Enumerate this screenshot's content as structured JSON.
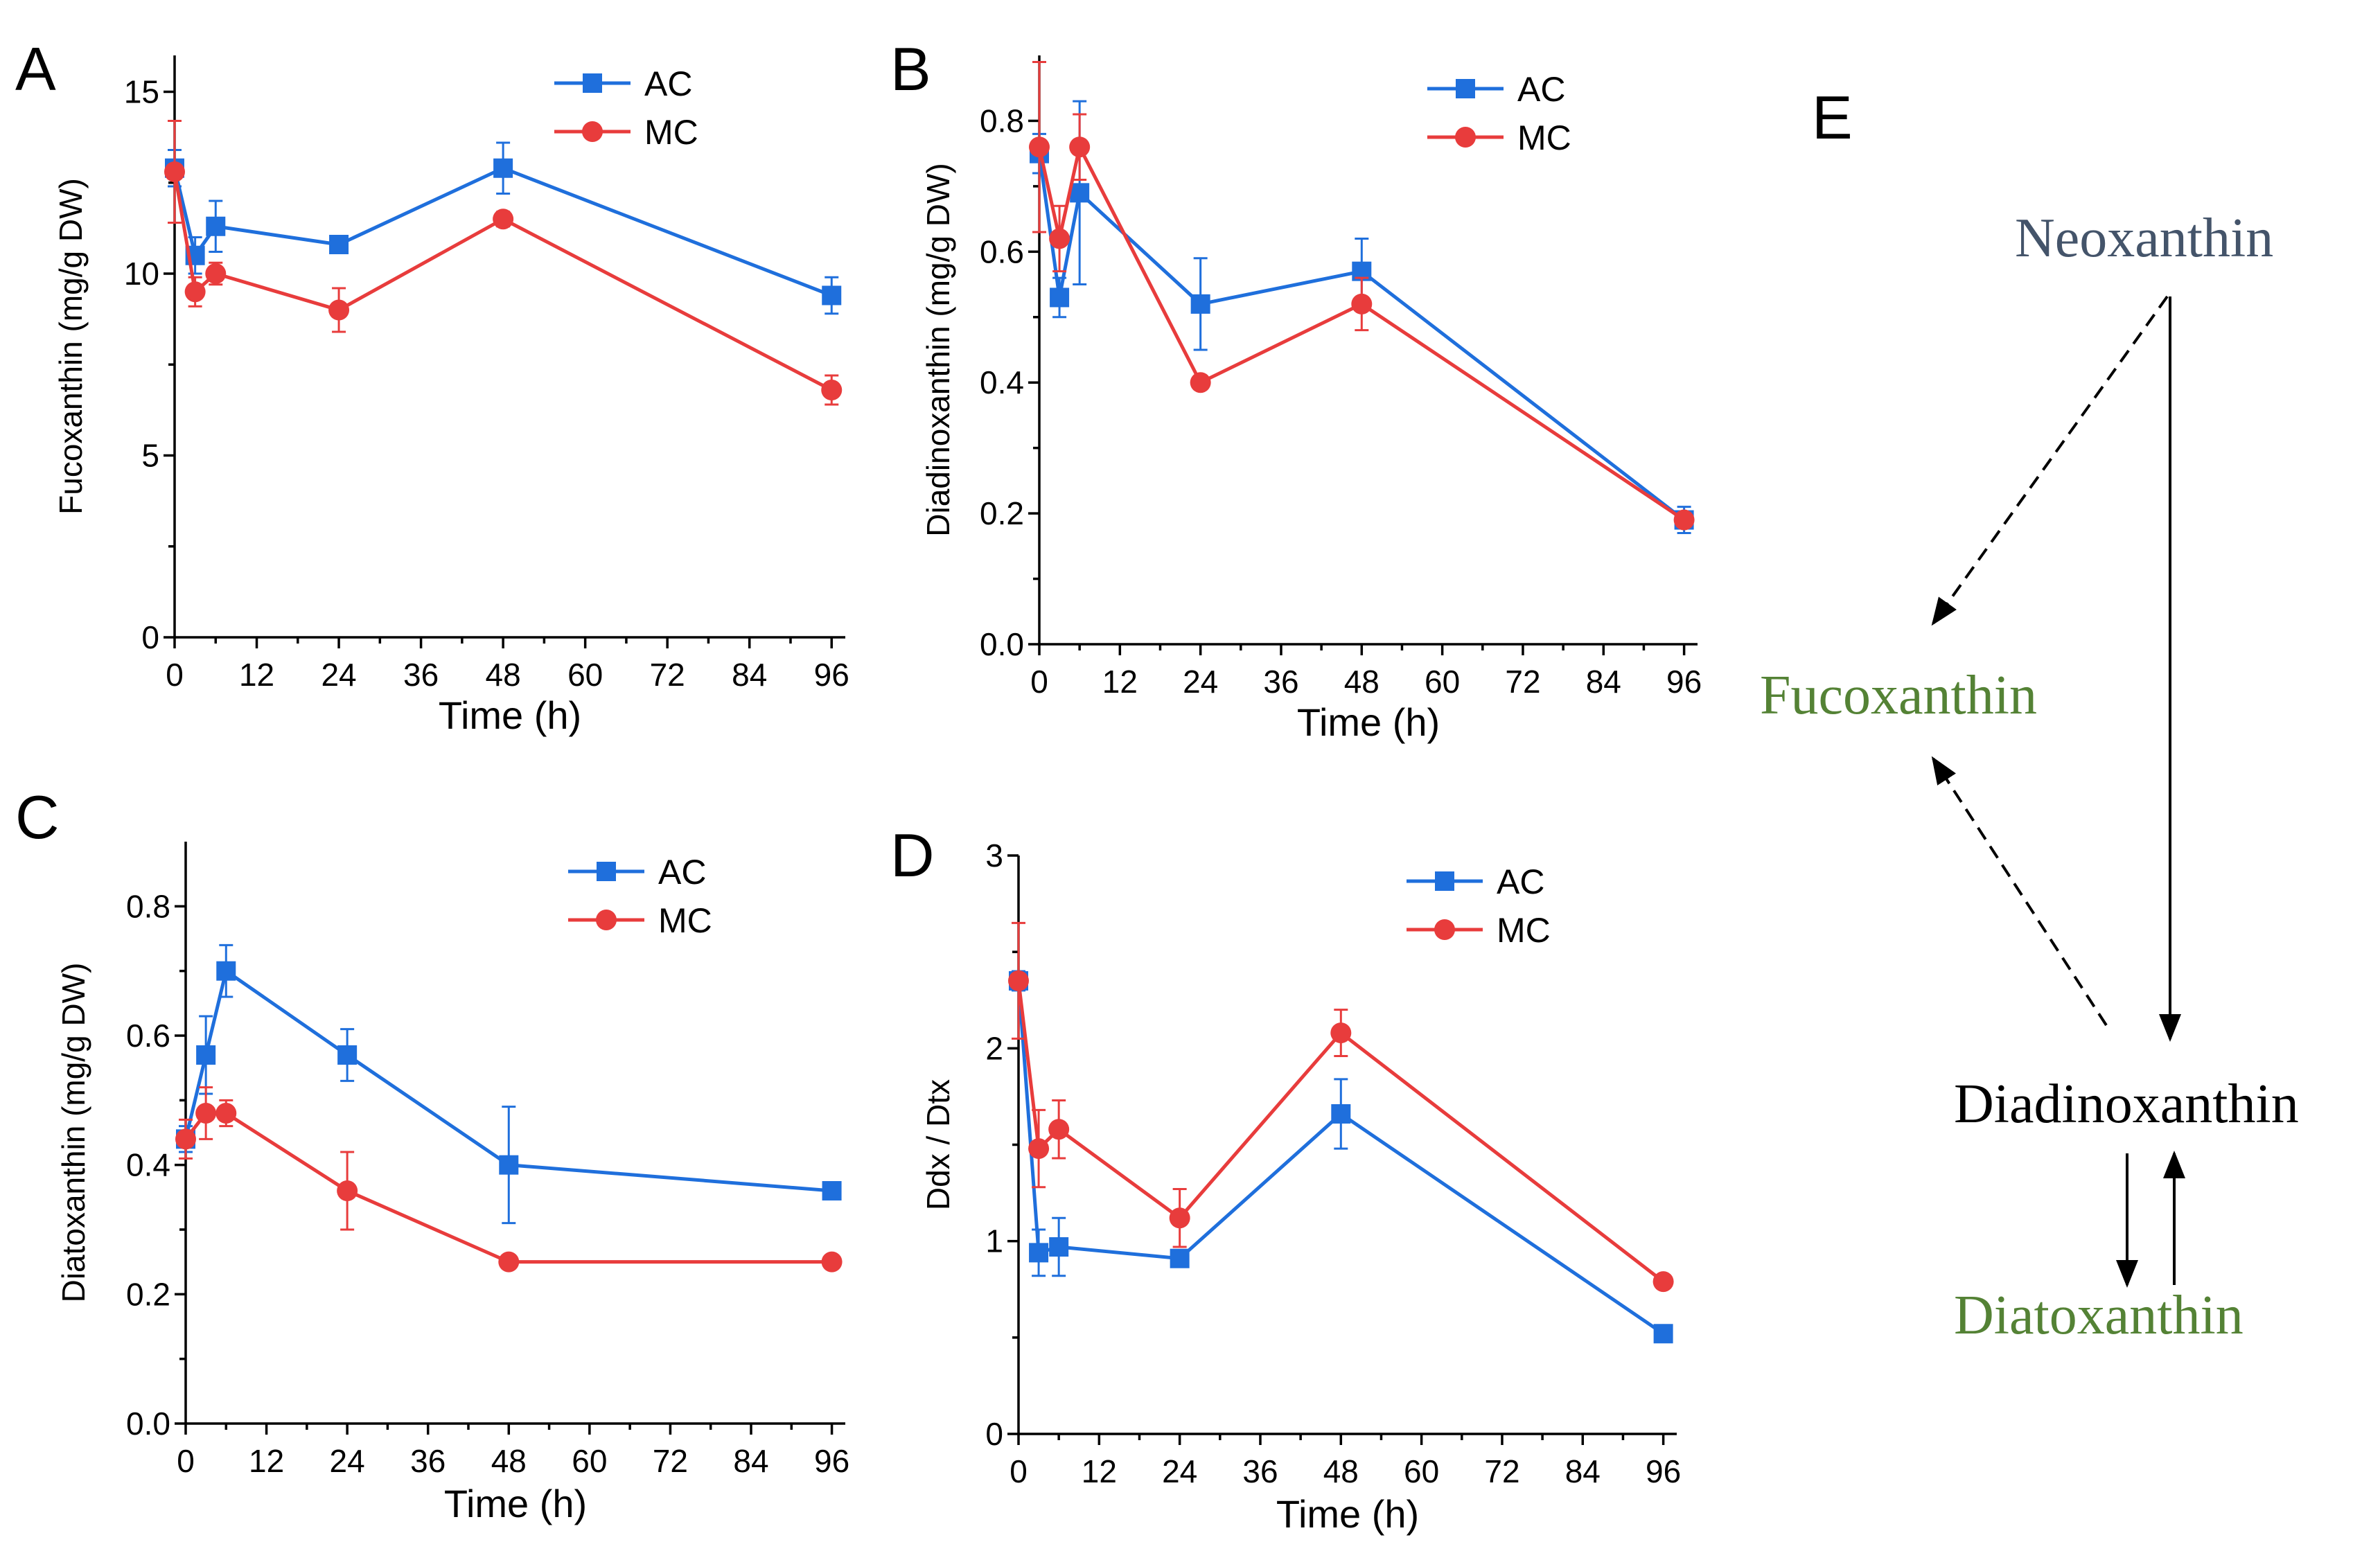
{
  "colors": {
    "AC": "#1f6fdc",
    "MC": "#e83c3c",
    "axis": "#000000"
  },
  "chart_data": [
    {
      "panel": "A",
      "type": "line",
      "ylabel": "Fucoxanthin (mg/g DW)",
      "xlabel": "Time (h)",
      "xlim": [
        0,
        98
      ],
      "ylim": [
        0,
        16
      ],
      "xticks": [
        0,
        12,
        24,
        36,
        48,
        60,
        72,
        84,
        96
      ],
      "yticks": [
        0,
        5,
        10,
        15
      ],
      "x": [
        0,
        3,
        6,
        24,
        48,
        96
      ],
      "legend_location": "top-right",
      "series": [
        {
          "name": "AC",
          "color": "#1f6fdc",
          "marker": "square",
          "values": [
            12.9,
            10.5,
            11.3,
            10.8,
            12.9,
            9.4
          ],
          "errors": [
            0.5,
            0.5,
            0.7,
            0.2,
            0.7,
            0.5
          ]
        },
        {
          "name": "MC",
          "color": "#e83c3c",
          "marker": "circle",
          "values": [
            12.8,
            9.5,
            10.0,
            9.0,
            11.5,
            6.8
          ],
          "errors": [
            1.4,
            0.4,
            0.3,
            0.6,
            0.2,
            0.4
          ]
        }
      ]
    },
    {
      "panel": "B",
      "type": "line",
      "ylabel": "Diadinoxanthin (mg/g DW)",
      "xlabel": "Time (h)",
      "xlim": [
        0,
        98
      ],
      "ylim": [
        0,
        0.9
      ],
      "xticks": [
        0,
        12,
        24,
        36,
        48,
        60,
        72,
        84,
        96
      ],
      "yticks": [
        0.0,
        0.2,
        0.4,
        0.6,
        0.8
      ],
      "ytick_labels": [
        "0.0",
        "0.2",
        "0.4",
        "0.6",
        "0.8"
      ],
      "x": [
        0,
        3,
        6,
        24,
        48,
        96
      ],
      "legend_location": "top-right",
      "series": [
        {
          "name": "AC",
          "color": "#1f6fdc",
          "marker": "square",
          "values": [
            0.75,
            0.53,
            0.69,
            0.52,
            0.57,
            0.19
          ],
          "errors": [
            0.03,
            0.03,
            0.14,
            0.07,
            0.05,
            0.02
          ]
        },
        {
          "name": "MC",
          "color": "#e83c3c",
          "marker": "circle",
          "values": [
            0.76,
            0.62,
            0.76,
            0.4,
            0.52,
            0.19
          ],
          "errors": [
            0.13,
            0.05,
            0.05,
            0.01,
            0.04,
            0.01
          ]
        }
      ]
    },
    {
      "panel": "C",
      "type": "line",
      "ylabel": "Diatoxanthin (mg/g DW)",
      "xlabel": "Time (h)",
      "xlim": [
        0,
        98
      ],
      "ylim": [
        0,
        0.9
      ],
      "xticks": [
        0,
        12,
        24,
        36,
        48,
        60,
        72,
        84,
        96
      ],
      "yticks": [
        0.0,
        0.2,
        0.4,
        0.6,
        0.8
      ],
      "ytick_labels": [
        "0.0",
        "0.2",
        "0.4",
        "0.6",
        "0.8"
      ],
      "x": [
        0,
        3,
        6,
        24,
        48,
        96
      ],
      "legend_location": "top-right",
      "series": [
        {
          "name": "AC",
          "color": "#1f6fdc",
          "marker": "square",
          "values": [
            0.44,
            0.57,
            0.7,
            0.57,
            0.4,
            0.36
          ],
          "errors": [
            0.02,
            0.06,
            0.04,
            0.04,
            0.09,
            0.01
          ]
        },
        {
          "name": "MC",
          "color": "#e83c3c",
          "marker": "circle",
          "values": [
            0.44,
            0.48,
            0.48,
            0.36,
            0.25,
            0.25
          ],
          "errors": [
            0.03,
            0.04,
            0.02,
            0.06,
            0.01,
            0.01
          ]
        }
      ]
    },
    {
      "panel": "D",
      "type": "line",
      "ylabel": "Ddx / Dtx",
      "xlabel": "Time (h)",
      "xlim": [
        0,
        98
      ],
      "ylim": [
        0,
        3
      ],
      "xticks": [
        0,
        12,
        24,
        36,
        48,
        60,
        72,
        84,
        96
      ],
      "yticks": [
        0,
        1,
        2,
        3
      ],
      "x": [
        0,
        3,
        6,
        24,
        48,
        96
      ],
      "legend_location": "top-right",
      "series": [
        {
          "name": "AC",
          "color": "#1f6fdc",
          "marker": "square",
          "values": [
            2.35,
            0.94,
            0.97,
            0.91,
            1.66,
            0.52
          ],
          "errors": [
            0.05,
            0.12,
            0.15,
            0.02,
            0.18,
            0.02
          ]
        },
        {
          "name": "MC",
          "color": "#e83c3c",
          "marker": "circle",
          "values": [
            2.35,
            1.48,
            1.58,
            1.12,
            2.08,
            0.79
          ],
          "errors": [
            0.3,
            0.2,
            0.15,
            0.15,
            0.12,
            0.02
          ]
        }
      ]
    }
  ],
  "diagram": {
    "panel": "E",
    "nodes": [
      {
        "id": "neoxanthin",
        "label": "Neoxanthin",
        "color": "#44546a"
      },
      {
        "id": "fucoxanthin",
        "label": "Fucoxanthin",
        "color": "#548235"
      },
      {
        "id": "diadinoxanthin",
        "label": "Diadinoxanthin",
        "color": "#000000"
      },
      {
        "id": "diatoxanthin",
        "label": "Diatoxanthin",
        "color": "#548235"
      }
    ],
    "edges": [
      {
        "from": "neoxanthin",
        "to": "fucoxanthin",
        "style": "dashed"
      },
      {
        "from": "neoxanthin",
        "to": "diadinoxanthin",
        "style": "solid"
      },
      {
        "from": "diadinoxanthin",
        "to": "fucoxanthin",
        "style": "dashed"
      },
      {
        "from": "diadinoxanthin",
        "to": "diatoxanthin",
        "style": "solid"
      },
      {
        "from": "diatoxanthin",
        "to": "diadinoxanthin",
        "style": "solid"
      }
    ]
  }
}
